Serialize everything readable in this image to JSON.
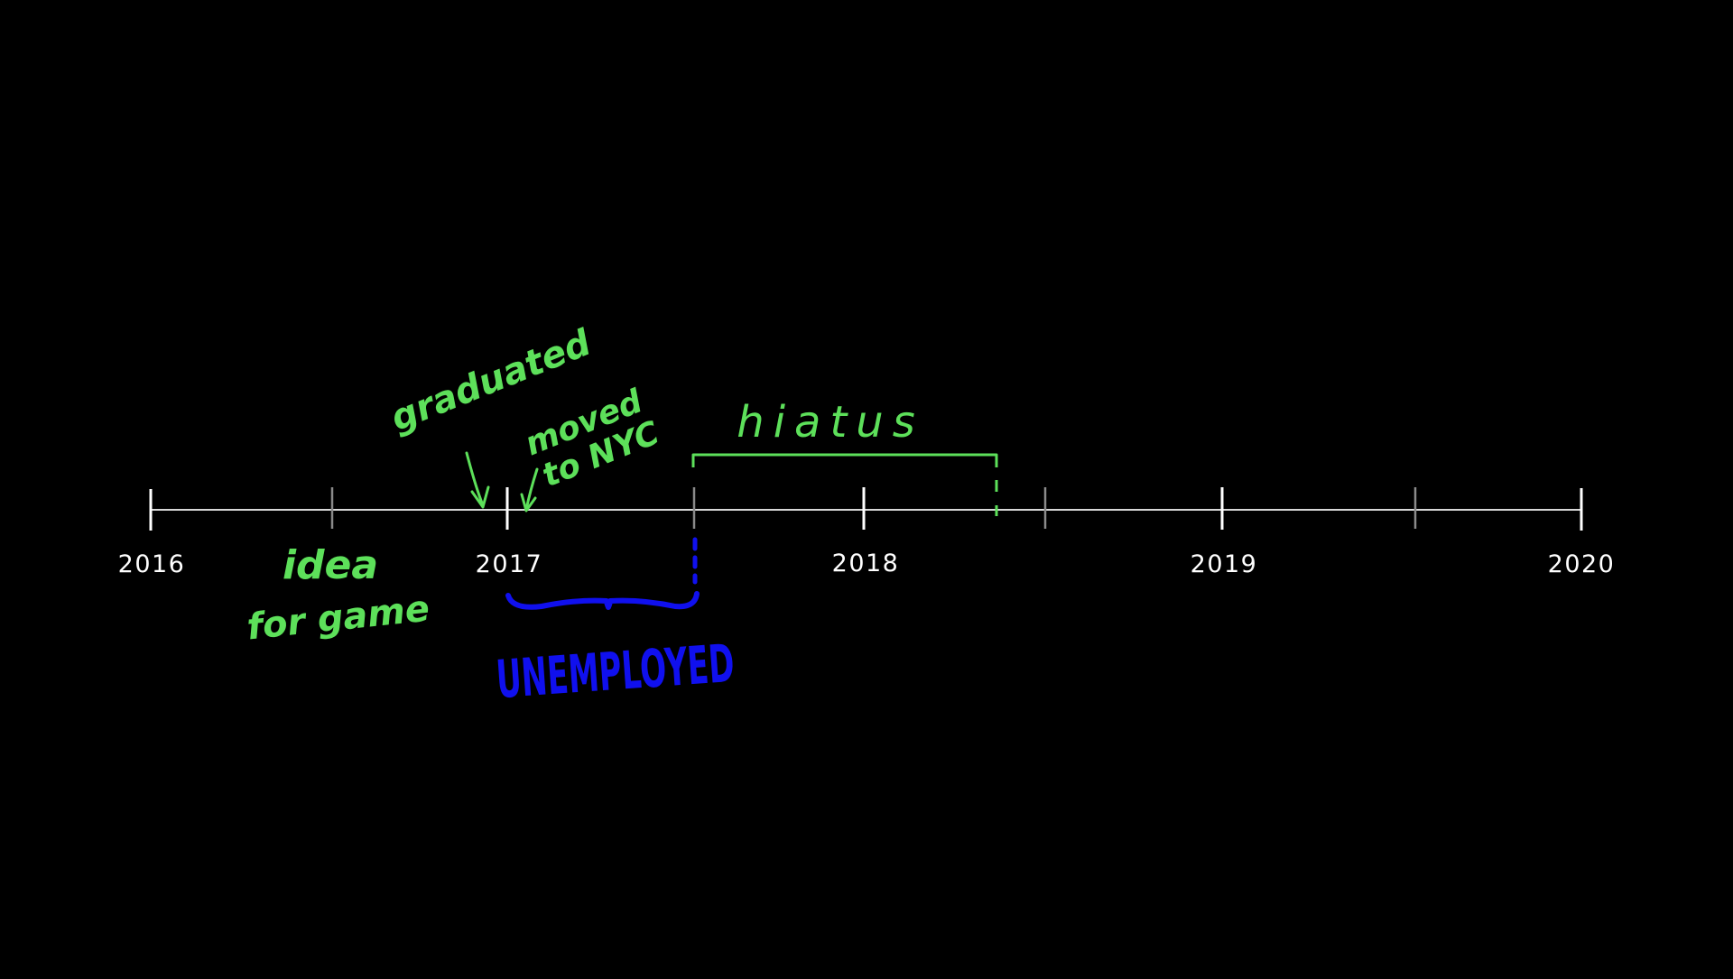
{
  "colors": {
    "background": "#000000",
    "axis": "#ffffff",
    "minor_tick": "#8a8a8a",
    "annotation_green": "#5de05a",
    "annotation_blue": "#1010ee"
  },
  "timeline": {
    "years": [
      "2016",
      "2017",
      "2018",
      "2019",
      "2020"
    ]
  },
  "annotations": {
    "graduated": "graduated",
    "moved_line1": "moved",
    "moved_line2": "to NYC",
    "hiatus": "hiatus",
    "idea_line1": "idea",
    "idea_line2": "for game",
    "unemployed": "UNEMPLOYED"
  }
}
